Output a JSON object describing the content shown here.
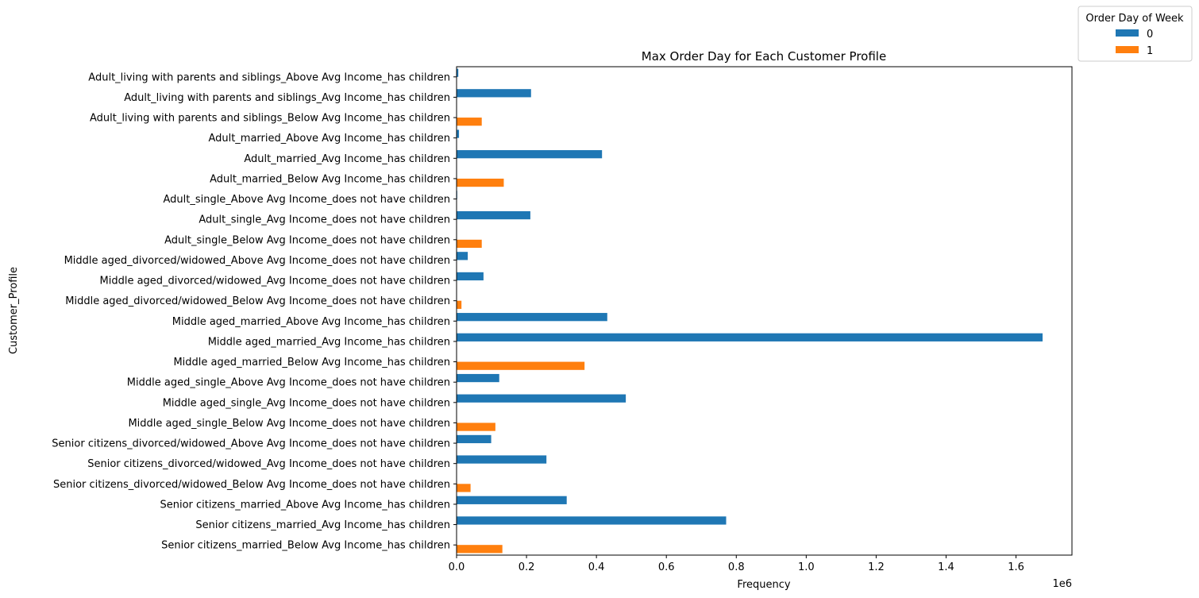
{
  "chart_data": {
    "type": "bar",
    "orientation": "horizontal",
    "title": "Max Order Day for Each Customer Profile",
    "xlabel": "Frequency",
    "ylabel": "Customer_Profile",
    "x_scale_label": "1e6",
    "xlim": [
      0,
      1760000
    ],
    "xticks": [
      0,
      200000,
      400000,
      600000,
      800000,
      1000000,
      1200000,
      1400000,
      1600000
    ],
    "xtick_labels": [
      "0.0",
      "0.2",
      "0.4",
      "0.6",
      "0.8",
      "1.0",
      "1.2",
      "1.4",
      "1.6"
    ],
    "grid": false,
    "legend": {
      "title": "Order Day of Week",
      "placement": "top-right-outside",
      "entries": [
        {
          "label": "0",
          "color": "#1f77b4"
        },
        {
          "label": "1",
          "color": "#ff7f0e"
        }
      ]
    },
    "categories": [
      "Adult_living with parents and siblings_Above Avg Income_has children",
      "Adult_living with parents and siblings_Avg Income_has children",
      "Adult_living with parents and siblings_Below Avg Income_has children",
      "Adult_married_Above Avg Income_has children",
      "Adult_married_Avg Income_has children",
      "Adult_married_Below Avg Income_has children",
      "Adult_single_Above Avg Income_does not have children",
      "Adult_single_Avg Income_does not have children",
      "Adult_single_Below Avg Income_does not have children",
      "Middle aged_divorced/widowed_Above Avg Income_does not have children",
      "Middle aged_divorced/widowed_Avg Income_does not have children",
      "Middle aged_divorced/widowed_Below Avg Income_does not have children",
      "Middle aged_married_Above Avg Income_has children",
      "Middle aged_married_Avg Income_has children",
      "Middle aged_married_Below Avg Income_has children",
      "Middle aged_single_Above Avg Income_does not have children",
      "Middle aged_single_Avg Income_does not have children",
      "Middle aged_single_Below Avg Income_does not have children",
      "Senior citizens_divorced/widowed_Above Avg Income_does not have children",
      "Senior citizens_divorced/widowed_Avg Income_does not have children",
      "Senior citizens_divorced/widowed_Below Avg Income_does not have children",
      "Senior citizens_married_Above Avg Income_has children",
      "Senior citizens_married_Avg Income_has children",
      "Senior citizens_married_Below Avg Income_has children"
    ],
    "series": [
      {
        "name": "0",
        "color": "#1f77b4",
        "values": [
          5000,
          213000,
          0,
          7000,
          416000,
          0,
          1000,
          211000,
          0,
          32000,
          77000,
          0,
          431000,
          1676000,
          0,
          122000,
          484000,
          0,
          99000,
          257000,
          0,
          315000,
          771000,
          0
        ]
      },
      {
        "name": "1",
        "color": "#ff7f0e",
        "values": [
          0,
          0,
          72000,
          0,
          0,
          135000,
          0,
          0,
          72000,
          0,
          0,
          14000,
          0,
          0,
          366000,
          0,
          0,
          111000,
          0,
          0,
          40000,
          0,
          0,
          131000
        ]
      }
    ]
  }
}
